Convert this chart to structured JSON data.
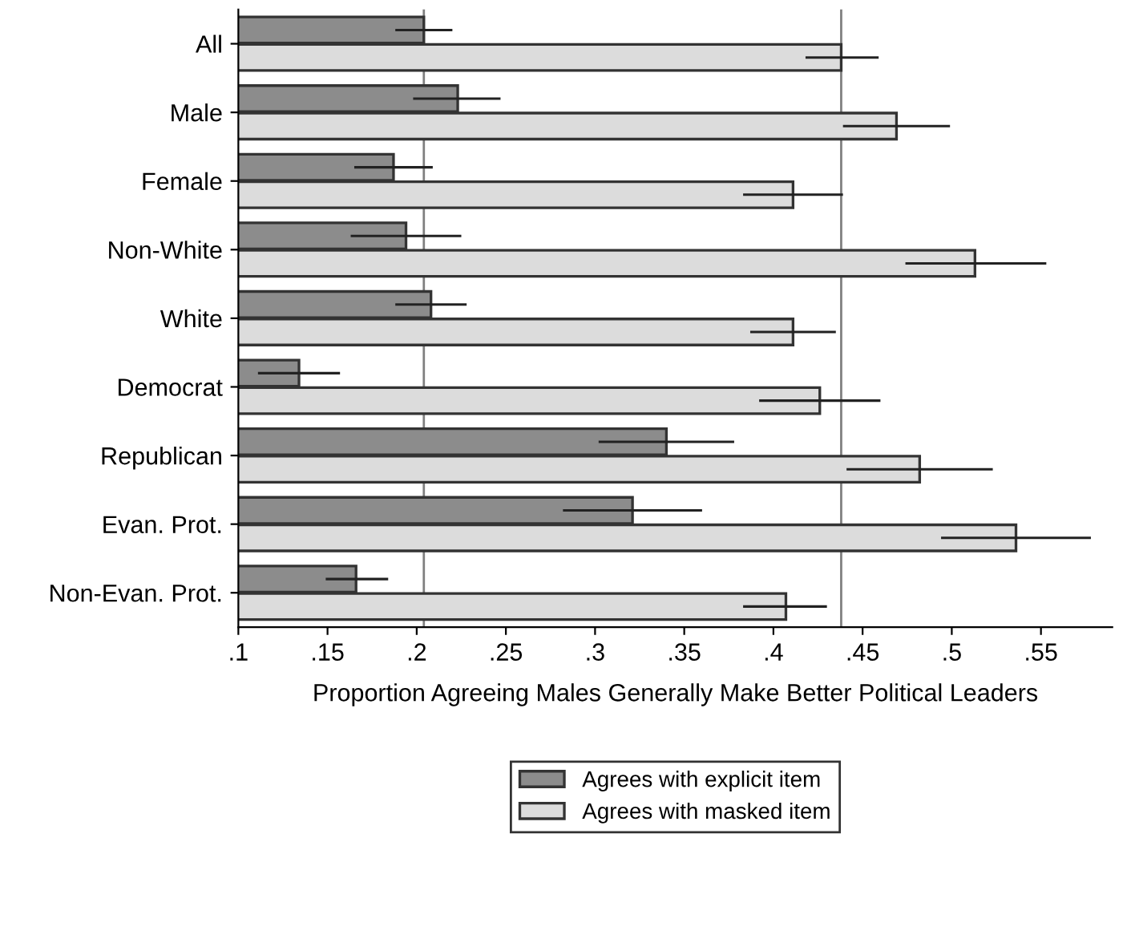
{
  "chart_data": {
    "type": "bar",
    "orientation": "horizontal",
    "xlabel": "Proportion Agreeing Males Generally Make Better Political Leaders",
    "categories": [
      "All",
      "Male",
      "Female",
      "Non-White",
      "White",
      "Democrat",
      "Republican",
      "Evan. Prot.",
      "Non-Evan. Prot."
    ],
    "series": [
      {
        "name": "Agrees with explicit item",
        "color": "#8c8c8c",
        "values": [
          0.204,
          0.223,
          0.187,
          0.194,
          0.208,
          0.134,
          0.34,
          0.321,
          0.166
        ],
        "errors": [
          [
            0.188,
            0.22
          ],
          [
            0.198,
            0.247
          ],
          [
            0.165,
            0.209
          ],
          [
            0.163,
            0.225
          ],
          [
            0.188,
            0.228
          ],
          [
            0.111,
            0.157
          ],
          [
            0.302,
            0.378
          ],
          [
            0.282,
            0.36
          ],
          [
            0.149,
            0.184
          ]
        ]
      },
      {
        "name": "Agrees with masked item",
        "color": "#dcdcdc",
        "values": [
          0.438,
          0.469,
          0.411,
          0.513,
          0.411,
          0.426,
          0.482,
          0.536,
          0.407
        ],
        "errors": [
          [
            0.418,
            0.459
          ],
          [
            0.439,
            0.499
          ],
          [
            0.383,
            0.439
          ],
          [
            0.474,
            0.553
          ],
          [
            0.387,
            0.435
          ],
          [
            0.392,
            0.46
          ],
          [
            0.441,
            0.523
          ],
          [
            0.494,
            0.578
          ],
          [
            0.383,
            0.43
          ]
        ]
      }
    ],
    "xlim": [
      0.1,
      0.59
    ],
    "xticks": [
      {
        "value": 0.1,
        "label": ".1"
      },
      {
        "value": 0.15,
        "label": ".15"
      },
      {
        "value": 0.2,
        "label": ".2"
      },
      {
        "value": 0.25,
        "label": ".25"
      },
      {
        "value": 0.3,
        "label": ".3"
      },
      {
        "value": 0.35,
        "label": ".35"
      },
      {
        "value": 0.4,
        "label": ".4"
      },
      {
        "value": 0.45,
        "label": ".45"
      },
      {
        "value": 0.5,
        "label": ".5"
      },
      {
        "value": 0.55,
        "label": ".55"
      }
    ],
    "ref_lines": [
      {
        "axis": "x",
        "value": 0.204,
        "color": "#808080"
      },
      {
        "axis": "x",
        "value": 0.438,
        "color": "#808080"
      }
    ],
    "grid": false,
    "legend": "bottom"
  }
}
